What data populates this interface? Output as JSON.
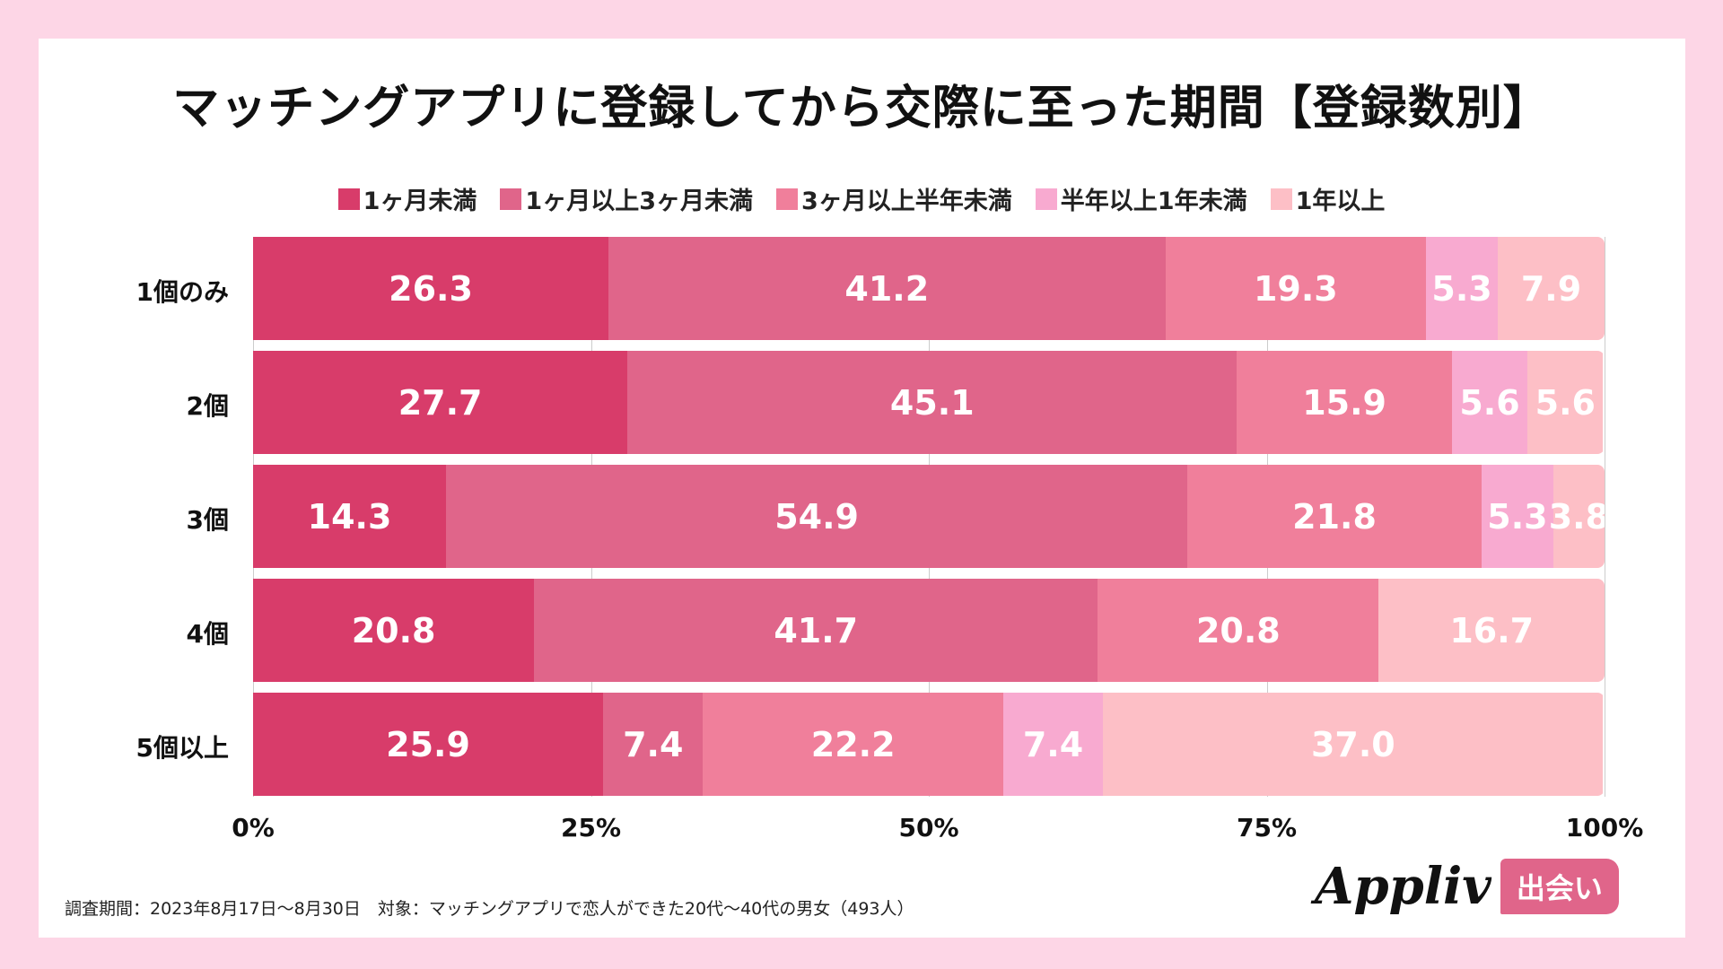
{
  "chart_data": {
    "type": "bar",
    "orientation": "horizontal",
    "stacked": true,
    "title": "マッチングアプリに登録してから交際に至った期間【登録数別】",
    "categories": [
      "1個のみ",
      "2個",
      "3個",
      "4個",
      "5個以上"
    ],
    "series": [
      {
        "name": "1ヶ月未満",
        "color": "#d83c6a",
        "values": [
          26.3,
          27.7,
          14.3,
          20.8,
          25.9
        ]
      },
      {
        "name": "1ヶ月以上3ヶ月未満",
        "color": "#e0658a",
        "values": [
          41.2,
          45.1,
          54.9,
          41.7,
          7.4
        ]
      },
      {
        "name": "3ヶ月以上半年未満",
        "color": "#f07f9b",
        "values": [
          19.3,
          15.9,
          21.8,
          20.8,
          22.2
        ]
      },
      {
        "name": "半年以上1年未満",
        "color": "#f8aad0",
        "values": [
          5.3,
          5.6,
          5.3,
          0,
          7.4
        ]
      },
      {
        "name": "1年以上",
        "color": "#fdbfc6",
        "values": [
          7.9,
          5.6,
          3.8,
          16.7,
          37.0
        ]
      }
    ],
    "xlim": [
      0,
      100
    ],
    "xticks": [
      "0%",
      "25%",
      "50%",
      "75%",
      "100%"
    ],
    "grid": true,
    "legend": "top"
  },
  "footer": "調査期間：2023年8月17日〜8月30日　対象：マッチングアプリで恋人ができた20代〜40代の男女（493人）",
  "logo": {
    "text": "Appliv",
    "badge": "出会い"
  }
}
